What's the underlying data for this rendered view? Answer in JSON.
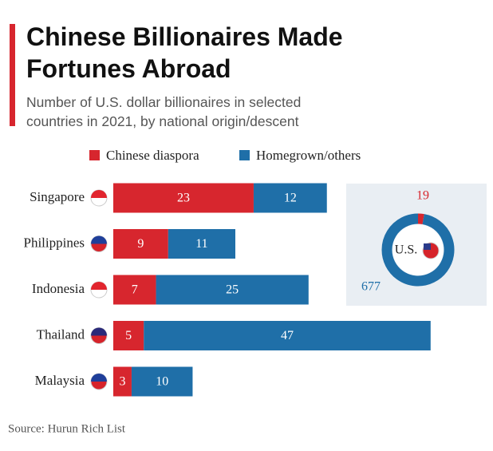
{
  "chart_data": [
    {
      "type": "bar",
      "orientation": "horizontal",
      "stacked": true,
      "title": "Chinese Billionaires Made Fortunes Abroad",
      "subtitle": "Number of U.S. dollar billionaires in selected countries in 2021, by national origin/descent",
      "source": "Source: Hurun Rich List",
      "categories": [
        "Singapore",
        "Philippines",
        "Indonesia",
        "Thailand",
        "Malaysia"
      ],
      "series": [
        {
          "name": "Chinese diaspora",
          "color": "#d7262e",
          "values": [
            23,
            9,
            7,
            5,
            3
          ]
        },
        {
          "name": "Homegrown/others",
          "color": "#1f6fa8",
          "values": [
            12,
            11,
            25,
            47,
            10
          ]
        }
      ]
    },
    {
      "type": "pie",
      "donut": true,
      "label": "U.S.",
      "values": [
        19,
        677
      ],
      "colors": [
        "#d7262e",
        "#1f6fa8"
      ]
    }
  ]
}
